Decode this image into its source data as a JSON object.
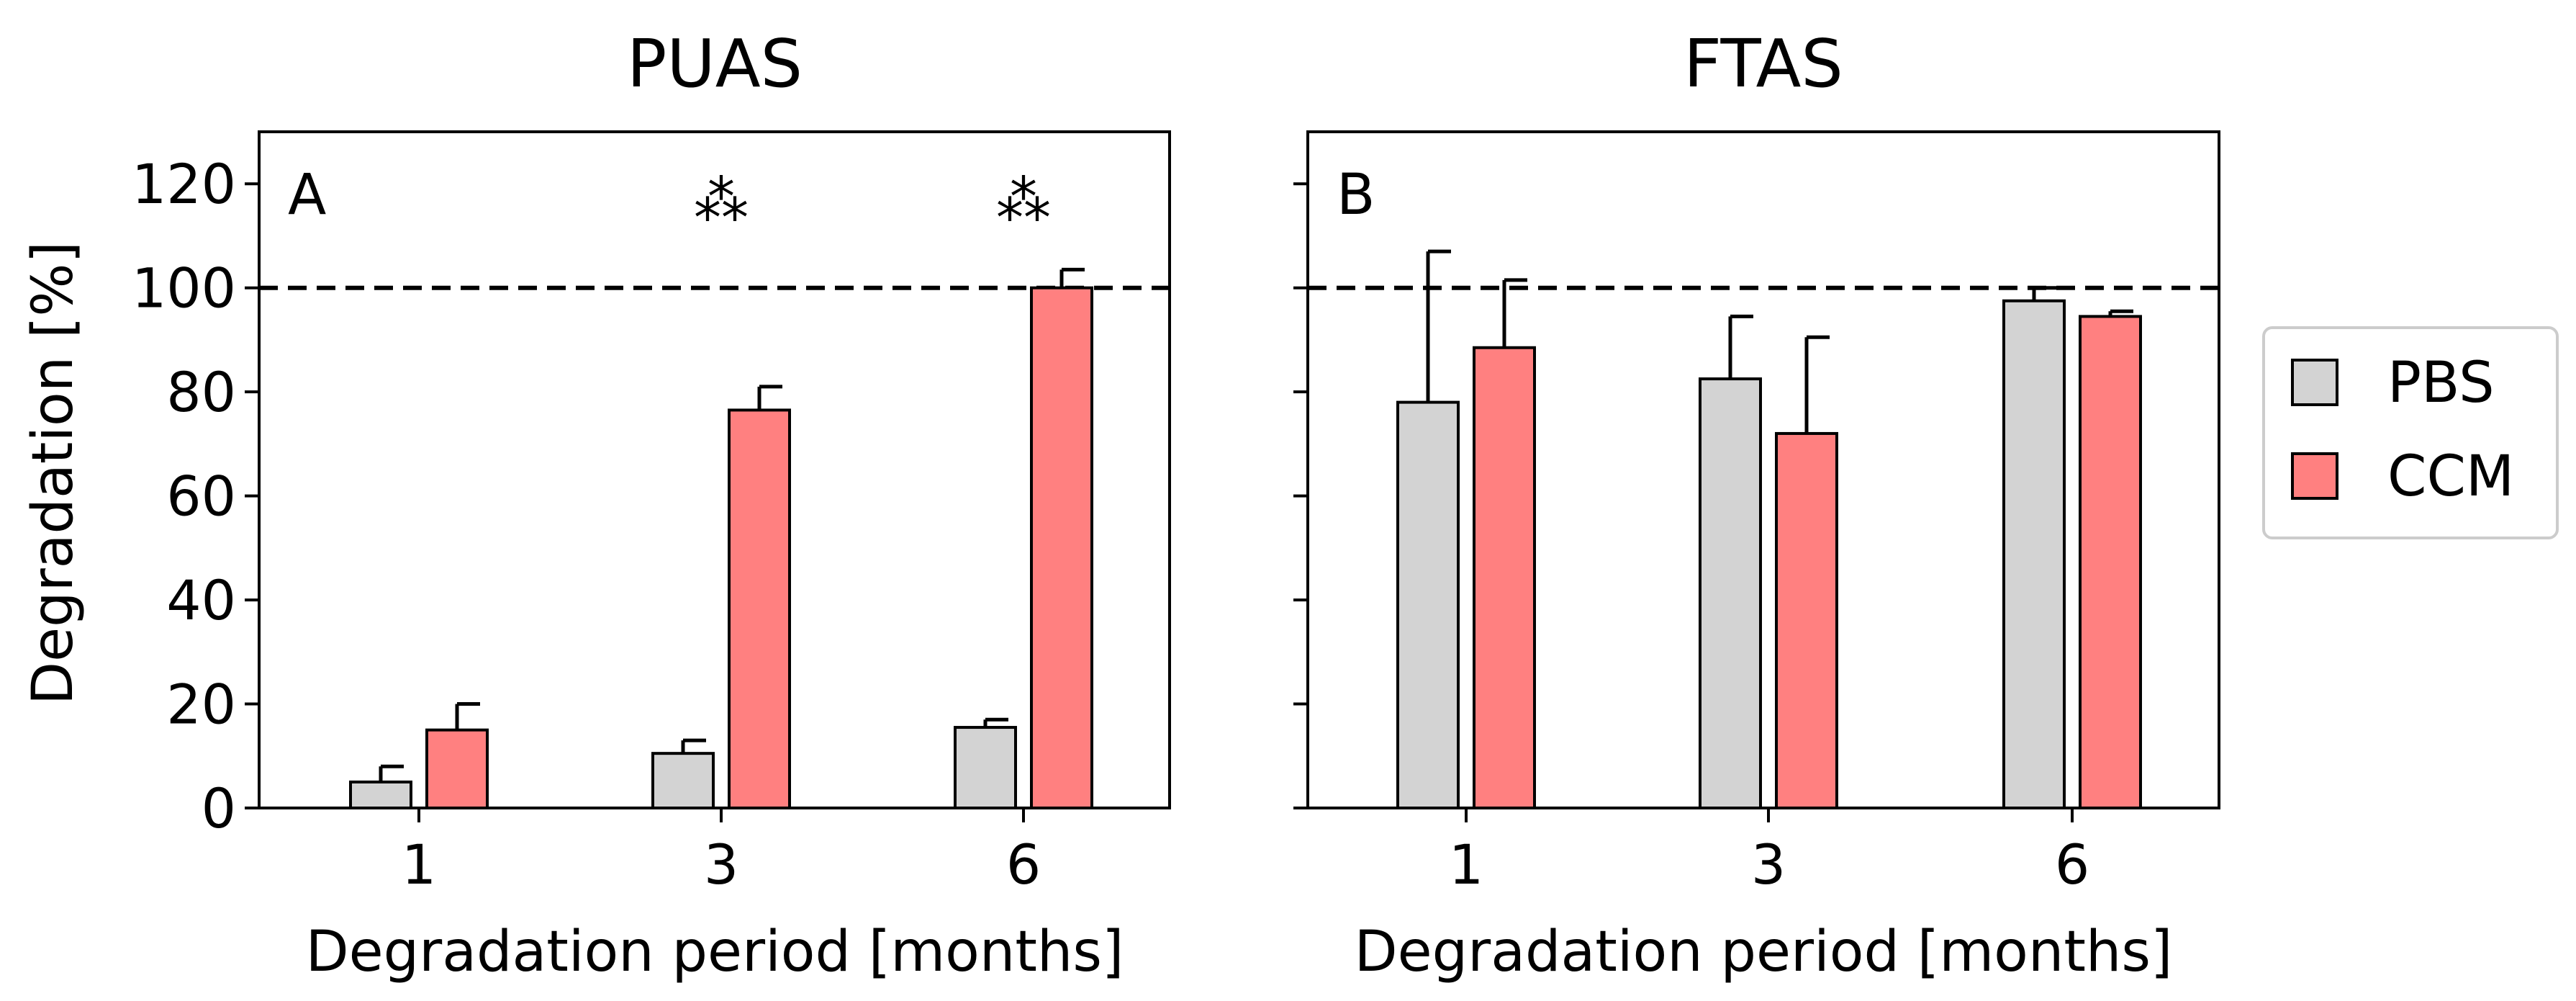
{
  "chart_data": [
    {
      "type": "bar",
      "panel": "A",
      "title": "PUAS",
      "xlabel": "Degradation period [months]",
      "ylabel": "Degradation [%]",
      "ylim": [
        0,
        130
      ],
      "yticks": [
        0,
        20,
        40,
        60,
        80,
        100,
        120
      ],
      "categories": [
        "1",
        "3",
        "6"
      ],
      "reference_line": 100,
      "series": [
        {
          "name": "PBS",
          "color": "#d3d3d3",
          "values": [
            5,
            10.5,
            15.5
          ],
          "errors": [
            3,
            2.5,
            1.5
          ]
        },
        {
          "name": "CCM",
          "color": "#ff8080",
          "values": [
            15,
            76.5,
            100
          ],
          "errors": [
            5,
            4.5,
            3.5
          ]
        }
      ],
      "annotations": [
        {
          "category": "3",
          "text": "⁂"
        },
        {
          "category": "6",
          "text": "⁂"
        }
      ]
    },
    {
      "type": "bar",
      "panel": "B",
      "title": "FTAS",
      "xlabel": "Degradation period [months]",
      "ylabel": "",
      "ylim": [
        0,
        130
      ],
      "yticks": [
        0,
        20,
        40,
        60,
        80,
        100,
        120
      ],
      "categories": [
        "1",
        "3",
        "6"
      ],
      "reference_line": 100,
      "series": [
        {
          "name": "PBS",
          "color": "#d3d3d3",
          "values": [
            78,
            82.5,
            97.5
          ],
          "errors": [
            29,
            12,
            2.5
          ]
        },
        {
          "name": "CCM",
          "color": "#ff8080",
          "values": [
            88.5,
            72,
            94.5
          ],
          "errors": [
            13,
            18.5,
            1
          ]
        }
      ],
      "annotations": []
    }
  ],
  "legend": {
    "position": "right",
    "items": [
      {
        "label": "PBS",
        "color": "#d3d3d3"
      },
      {
        "label": "CCM",
        "color": "#ff8080"
      }
    ]
  }
}
